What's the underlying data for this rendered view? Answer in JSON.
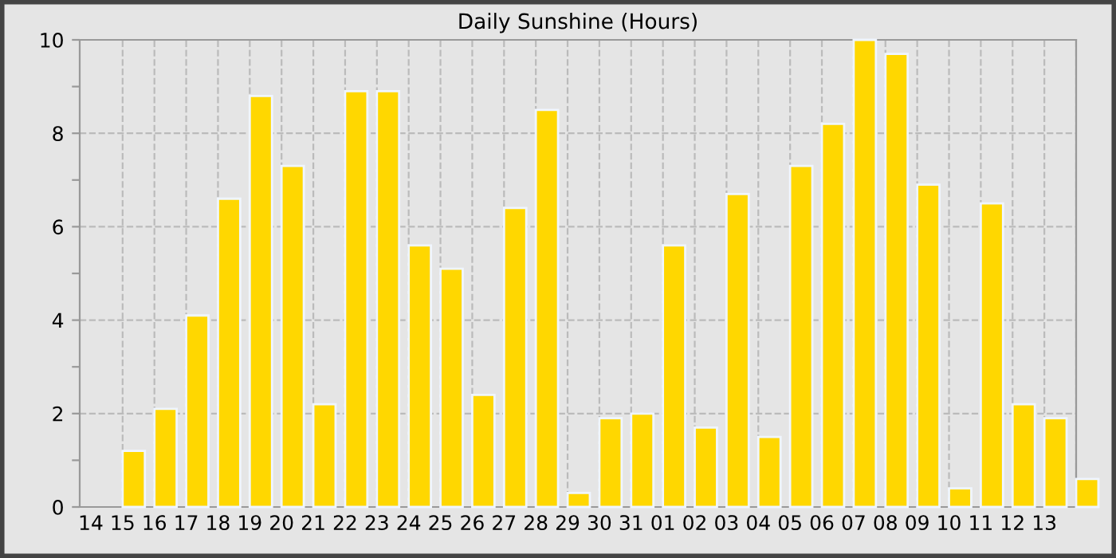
{
  "chart_data": {
    "type": "bar",
    "title": "Daily Sunshine (Hours)",
    "categories": [
      "14",
      "15",
      "16",
      "17",
      "18",
      "19",
      "20",
      "21",
      "22",
      "23",
      "24",
      "25",
      "26",
      "27",
      "28",
      "29",
      "30",
      "31",
      "01",
      "02",
      "03",
      "04",
      "05",
      "06",
      "07",
      "08",
      "09",
      "10",
      "11",
      "12",
      "13",
      null
    ],
    "values": [
      null,
      1.2,
      2.1,
      4.1,
      6.6,
      8.8,
      7.3,
      2.2,
      8.9,
      8.9,
      5.6,
      5.1,
      2.4,
      6.4,
      8.5,
      0.3,
      1.9,
      2.0,
      5.6,
      1.7,
      6.7,
      1.5,
      7.3,
      8.2,
      10.0,
      9.7,
      6.9,
      0.4,
      6.5,
      2.2,
      1.9,
      0.6
    ],
    "color": "#ffd700",
    "ylim": [
      0,
      10
    ],
    "yticks": [
      0,
      {
        "value": 1,
        "label": null
      },
      2,
      {
        "value": 3,
        "label": null
      },
      4,
      {
        "value": 5,
        "label": null
      },
      6,
      {
        "value": 7,
        "label": null
      },
      8,
      {
        "value": 9,
        "label": null
      },
      10
    ],
    "grid": true,
    "line_style": "dashed"
  }
}
